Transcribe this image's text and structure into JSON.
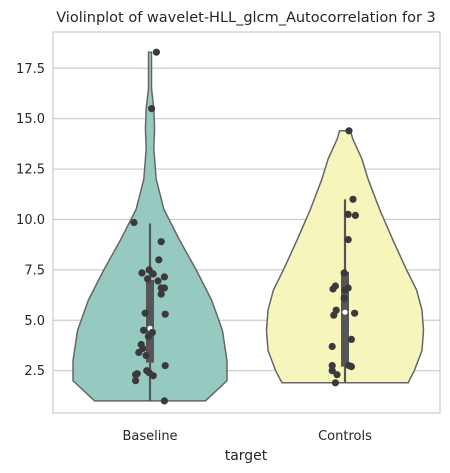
{
  "chart_data": {
    "type": "violin",
    "title": "Violinplot of wavelet-HLL_glcm_Autocorrelation for 3",
    "xlabel": "target",
    "ylabel": "",
    "ylim": [
      0.4,
      19.3
    ],
    "yticks": [
      2.5,
      5.0,
      7.5,
      10.0,
      12.5,
      15.0,
      17.5
    ],
    "ytick_labels": [
      "2.5",
      "5.0",
      "7.5",
      "10.0",
      "12.5",
      "15.0",
      "17.5"
    ],
    "grid": true,
    "categories": [
      "Baseline",
      "Controls"
    ],
    "colors": {
      "Baseline": "#96cac1",
      "Controls": "#f6f6bc",
      "points": "#3a3a3a",
      "box": "#555555"
    },
    "series": [
      {
        "category": "Baseline",
        "min": 1.0,
        "max": 18.3,
        "q1": 2.9,
        "median": 4.6,
        "q3": 7.0,
        "whisker_low": 1.0,
        "whisker_high": 9.8,
        "density": [
          [
            1.0,
            0.72
          ],
          [
            2.0,
            1.0
          ],
          [
            3.0,
            1.0
          ],
          [
            4.5,
            0.94
          ],
          [
            6.0,
            0.8
          ],
          [
            7.5,
            0.6
          ],
          [
            9.0,
            0.38
          ],
          [
            10.5,
            0.18
          ],
          [
            12.0,
            0.08
          ],
          [
            13.5,
            0.05
          ],
          [
            14.5,
            0.06
          ],
          [
            15.5,
            0.05
          ],
          [
            16.5,
            0.02
          ],
          [
            18.3,
            0.02
          ]
        ],
        "points": [
          {
            "y": 18.3,
            "j": 0.08
          },
          {
            "y": 15.5,
            "j": 0.02
          },
          {
            "y": 9.85,
            "j": -0.2
          },
          {
            "y": 8.9,
            "j": 0.14
          },
          {
            "y": 8.0,
            "j": 0.11
          },
          {
            "y": 7.5,
            "j": -0.01
          },
          {
            "y": 7.35,
            "j": -0.1
          },
          {
            "y": 7.3,
            "j": 0.04
          },
          {
            "y": 7.15,
            "j": 0.18
          },
          {
            "y": 7.05,
            "j": -0.03
          },
          {
            "y": 6.95,
            "j": 0.1
          },
          {
            "y": 6.6,
            "j": 0.14
          },
          {
            "y": 6.6,
            "j": 0.18
          },
          {
            "y": 6.3,
            "j": 0.14
          },
          {
            "y": 5.3,
            "j": 0.19
          },
          {
            "y": 5.35,
            "j": -0.06
          },
          {
            "y": 4.5,
            "j": -0.08
          },
          {
            "y": 4.4,
            "j": 0.03
          },
          {
            "y": 4.2,
            "j": -0.02
          },
          {
            "y": 3.8,
            "j": -0.11
          },
          {
            "y": 3.6,
            "j": -0.09
          },
          {
            "y": 3.4,
            "j": -0.14
          },
          {
            "y": 3.25,
            "j": -0.05
          },
          {
            "y": 2.75,
            "j": 0.19
          },
          {
            "y": 2.5,
            "j": -0.04
          },
          {
            "y": 2.4,
            "j": -0.01
          },
          {
            "y": 2.35,
            "j": -0.16
          },
          {
            "y": 2.3,
            "j": -0.18
          },
          {
            "y": 2.25,
            "j": 0.04
          },
          {
            "y": 2.0,
            "j": -0.18
          },
          {
            "y": 1.0,
            "j": 0.18
          }
        ]
      },
      {
        "category": "Controls",
        "min": 1.9,
        "max": 14.4,
        "q1": 2.7,
        "median": 5.4,
        "q3": 7.4,
        "whisker_low": 1.9,
        "whisker_high": 11.0,
        "density": [
          [
            1.9,
            0.82
          ],
          [
            2.5,
            0.9
          ],
          [
            3.5,
            1.0
          ],
          [
            4.5,
            1.02
          ],
          [
            5.5,
            1.0
          ],
          [
            6.5,
            0.93
          ],
          [
            7.5,
            0.8
          ],
          [
            9.0,
            0.62
          ],
          [
            10.5,
            0.45
          ],
          [
            12.0,
            0.3
          ],
          [
            13.0,
            0.22
          ],
          [
            14.0,
            0.1
          ],
          [
            14.4,
            0.07
          ]
        ],
        "points": [
          {
            "y": 14.4,
            "j": 0.05
          },
          {
            "y": 11.0,
            "j": 0.1
          },
          {
            "y": 10.25,
            "j": 0.04
          },
          {
            "y": 10.2,
            "j": 0.13
          },
          {
            "y": 9.0,
            "j": 0.04
          },
          {
            "y": 7.35,
            "j": -0.01
          },
          {
            "y": 6.7,
            "j": -0.12
          },
          {
            "y": 6.6,
            "j": 0.04
          },
          {
            "y": 6.55,
            "j": -0.15
          },
          {
            "y": 6.5,
            "j": 0.0
          },
          {
            "y": 6.1,
            "j": -0.01
          },
          {
            "y": 5.5,
            "j": -0.11
          },
          {
            "y": 5.35,
            "j": 0.12
          },
          {
            "y": 5.25,
            "j": -0.14
          },
          {
            "y": 4.05,
            "j": 0.08
          },
          {
            "y": 3.7,
            "j": -0.16
          },
          {
            "y": 2.75,
            "j": -0.16
          },
          {
            "y": 2.75,
            "j": 0.05
          },
          {
            "y": 2.7,
            "j": 0.08
          },
          {
            "y": 2.5,
            "j": -0.16
          },
          {
            "y": 2.3,
            "j": -0.1
          },
          {
            "y": 1.9,
            "j": -0.12
          }
        ]
      }
    ]
  }
}
